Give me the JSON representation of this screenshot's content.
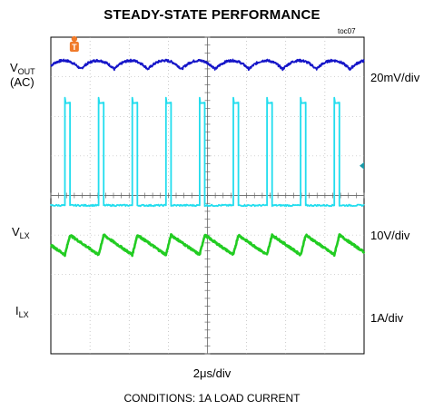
{
  "chart_data": {
    "type": "line",
    "title": "STEADY-STATE PERFORMANCE",
    "figure_id": "toc07",
    "xlabel": "2μs/div",
    "footer": "CONDITIONS: 1A LOAD CURRENT",
    "x_divisions": 8,
    "y_divisions": 8,
    "x_unit": "div",
    "time_per_div_us": 2,
    "grid": true,
    "trigger_marker": {
      "label": "T",
      "color": "#f07a2a",
      "x_div": 0.6
    },
    "channel_marker_color": "#1a9aa8",
    "traces": [
      {
        "signal": "V_OUT (AC)",
        "color": "#1515c8",
        "scale": "20mV/div",
        "baseline_div": 7.3,
        "period_div": 0.86,
        "shape": "scallop",
        "amplitude_div": 0.22
      },
      {
        "signal": "V_LX",
        "color": "#22ddee",
        "scale": "10V/div",
        "low_div": 3.75,
        "high_div": 6.35,
        "period_div": 0.86,
        "pulse_width_div": 0.13,
        "first_edge_div": 0.36,
        "shape": "pulse"
      },
      {
        "signal": "I_LX",
        "color": "#22cc22",
        "scale": "1A/div",
        "min_div": 2.5,
        "max_div": 3.0,
        "period_div": 0.86,
        "first_edge_div": 0.36,
        "rise_fraction": 0.15,
        "shape": "sawtooth"
      }
    ]
  },
  "labels": {
    "vout_main": "V",
    "vout_sub": "OUT",
    "vout_ac": "(AC)",
    "vlx_main": "V",
    "vlx_sub": "LX",
    "ilx_main": "I",
    "ilx_sub": "LX",
    "scale_vout": "20mV/div",
    "scale_vlx": "10V/div",
    "scale_ilx": "1A/div"
  }
}
